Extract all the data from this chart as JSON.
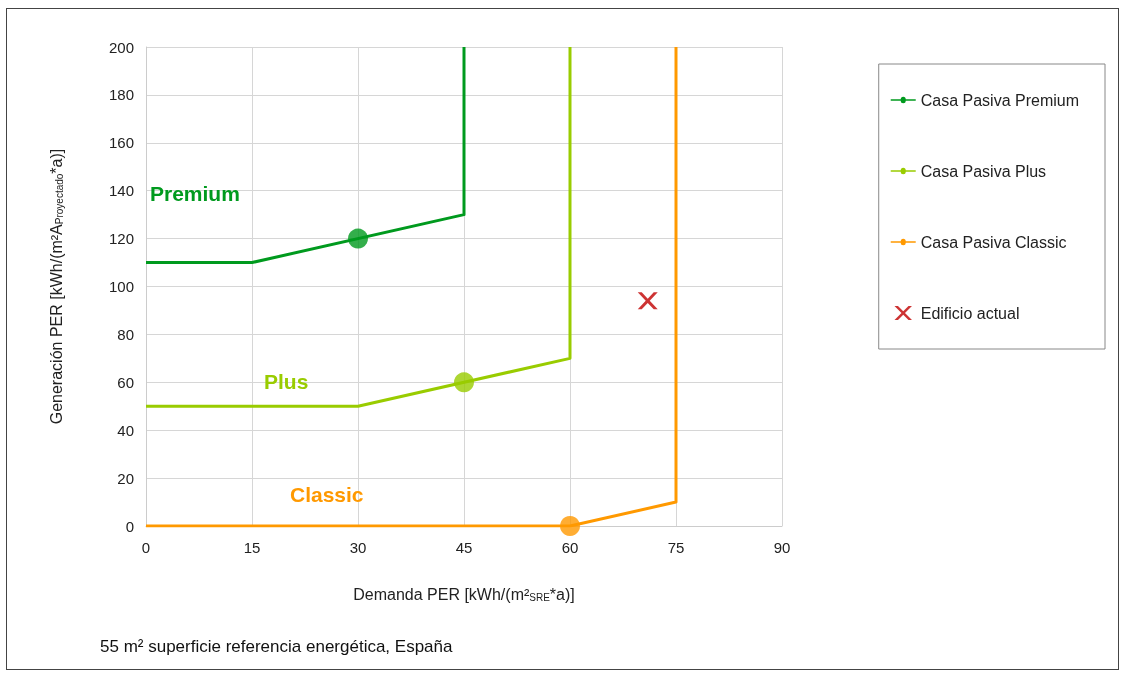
{
  "chart_data": {
    "type": "line",
    "xlabel": "Demanda PER [kWh/(m²$_{SRE}$*a)]",
    "ylabel": "Generación PER [kWh/(m²A$_{Proyectado}$*a)]",
    "xlim": [
      0,
      90
    ],
    "xticks": [
      0,
      15,
      30,
      45,
      60,
      75,
      90
    ],
    "ylim": [
      0,
      200
    ],
    "yticks": [
      0,
      20,
      40,
      60,
      80,
      100,
      120,
      140,
      160,
      180,
      200
    ],
    "grid": true,
    "legend": "right",
    "marker": "none",
    "line_style": "solid",
    "series": [
      {
        "name": "Casa Pasiva Premium",
        "color": "#009a1e",
        "x": [
          0,
          15,
          45,
          45
        ],
        "values": [
          110,
          110,
          130,
          200
        ]
      },
      {
        "name": "Casa Pasiva Plus",
        "color": "#99cc00",
        "x": [
          0,
          30,
          60,
          60
        ],
        "values": [
          50,
          50,
          70,
          200
        ]
      },
      {
        "name": "Casa Pasiva Classic",
        "color": "#ff9900",
        "x": [
          0,
          60,
          75,
          75
        ],
        "values": [
          0,
          0,
          10,
          200
        ]
      },
      {
        "type": "scatter",
        "marker": "circle",
        "color": "#009a1e",
        "x": [
          30
        ],
        "values": [
          120
        ]
      },
      {
        "type": "scatter",
        "marker": "circle",
        "color": "#99cc00",
        "x": [
          45
        ],
        "values": [
          60
        ]
      },
      {
        "type": "scatter",
        "marker": "circle",
        "color": "#ff9900",
        "x": [
          60
        ],
        "values": [
          0
        ]
      },
      {
        "name": "Edificio actual",
        "type": "scatter",
        "marker": "cross",
        "color": "#c00000",
        "x": [
          71
        ],
        "values": [
          94
        ]
      }
    ],
    "annotations": [
      "Premium",
      "Plus",
      "Classic",
      "55 m² superficie referencia energética, España"
    ]
  }
}
